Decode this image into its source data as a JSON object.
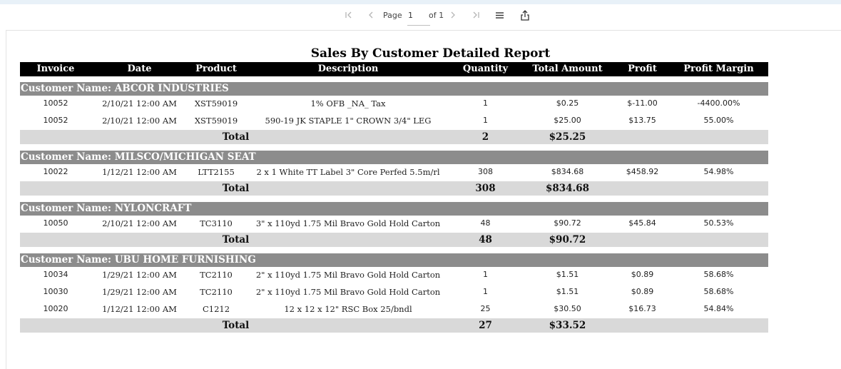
{
  "toolbar": {
    "first_icon": "first-page-icon",
    "prev_icon": "previous-page-icon",
    "page_label": "Page",
    "page_value": "1",
    "of_label": "of 1",
    "next_icon": "next-page-icon",
    "last_icon": "last-page-icon",
    "menu_icon": "menu-icon",
    "export_icon": "export-icon"
  },
  "report": {
    "title": "Sales By Customer Detailed Report",
    "columns": {
      "invoice": "Invoice",
      "date": "Date",
      "product": "Product",
      "description": "Description",
      "quantity": "Quantity",
      "total_amount": "Total Amount",
      "profit": "Profit",
      "profit_margin": "Profit Margin"
    },
    "groups": [
      {
        "header": "Customer Name: ABCOR INDUSTRIES",
        "rows": [
          {
            "invoice": "10052",
            "date": "2/10/21 12:00 AM",
            "product": "XST59019",
            "description": "1% OFB _NA_ Tax",
            "quantity": "1",
            "total_amount": "$0.25",
            "profit": "$-11.00",
            "profit_margin": "-4400.00%"
          },
          {
            "invoice": "10052",
            "date": "2/10/21 12:00 AM",
            "product": "XST59019",
            "description": "590-19 JK STAPLE 1\" CROWN 3/4\" LEG",
            "quantity": "1",
            "total_amount": "$25.00",
            "profit": "$13.75",
            "profit_margin": "55.00%"
          }
        ],
        "total_label": "Total",
        "total_quantity": "2",
        "total_amount": "$25.25"
      },
      {
        "header": "Customer Name: MILSCO/MICHIGAN SEAT",
        "rows": [
          {
            "invoice": "10022",
            "date": "1/12/21 12:00 AM",
            "product": "LTT2155",
            "description": "2 x 1 White TT Label 3\" Core Perfed 5.5m/rl",
            "quantity": "308",
            "total_amount": "$834.68",
            "profit": "$458.92",
            "profit_margin": "54.98%"
          }
        ],
        "total_label": "Total",
        "total_quantity": "308",
        "total_amount": "$834.68"
      },
      {
        "header": "Customer Name: NYLONCRAFT",
        "rows": [
          {
            "invoice": "10050",
            "date": "2/10/21 12:00 AM",
            "product": "TC3110",
            "description": "3\" x 110yd 1.75 Mil Bravo Gold Hold Carton",
            "quantity": "48",
            "total_amount": "$90.72",
            "profit": "$45.84",
            "profit_margin": "50.53%"
          }
        ],
        "total_label": "Total",
        "total_quantity": "48",
        "total_amount": "$90.72"
      },
      {
        "header": "Customer Name: UBU HOME FURNISHING",
        "rows": [
          {
            "invoice": "10034",
            "date": "1/29/21 12:00 AM",
            "product": "TC2110",
            "description": "2\" x 110yd 1.75 Mil Bravo Gold Hold Carton",
            "quantity": "1",
            "total_amount": "$1.51",
            "profit": "$0.89",
            "profit_margin": "58.68%"
          },
          {
            "invoice": "10030",
            "date": "1/29/21 12:00 AM",
            "product": "TC2110",
            "description": "2\" x 110yd 1.75 Mil Bravo Gold Hold Carton",
            "quantity": "1",
            "total_amount": "$1.51",
            "profit": "$0.89",
            "profit_margin": "58.68%"
          },
          {
            "invoice": "10020",
            "date": "1/12/21 12:00 AM",
            "product": "C1212",
            "description": "12 x 12 x 12\" RSC Box 25/bndl",
            "quantity": "25",
            "total_amount": "$30.50",
            "profit": "$16.73",
            "profit_margin": "54.84%"
          }
        ],
        "total_label": "Total",
        "total_quantity": "27",
        "total_amount": "$33.52"
      }
    ]
  },
  "colors": {
    "header_bg": "#000000",
    "group_bg": "#8c8c8c",
    "total_bg": "#d9d9d9",
    "toolbar_strip": "#e8f1f8"
  }
}
